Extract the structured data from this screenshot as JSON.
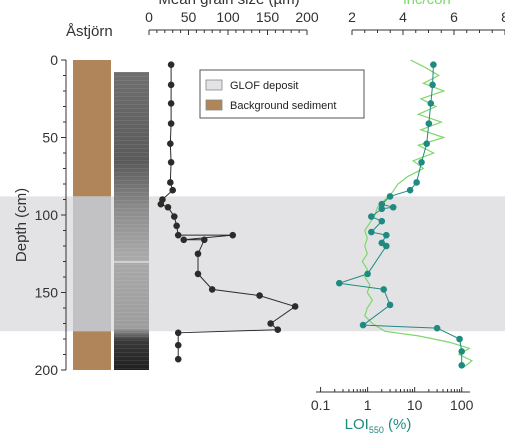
{
  "colors": {
    "glof": "#e3e3e5",
    "background_sediment": "#b08559",
    "grain_markers": "#2b2b2b",
    "loi_markers": "#1f8a80",
    "inc_coh_line": "#7dd86a",
    "axis": "#333333"
  },
  "chart_data": {
    "type": "scatter",
    "core_label": "Åstjörn",
    "depth_axis": {
      "label": "Depth (cm)",
      "ticks": [
        "0",
        "50",
        "100",
        "150",
        "200"
      ],
      "tick_values": [
        0,
        50,
        100,
        150,
        200
      ],
      "ylim": [
        0,
        200
      ],
      "inverted": true
    },
    "glof_interval_cm": [
      88,
      175
    ],
    "lithology": [
      {
        "name": "Background sediment",
        "from": 0,
        "to": 88
      },
      {
        "name": "GLOF deposit",
        "from": 88,
        "to": 175
      },
      {
        "name": "Background sediment",
        "from": 175,
        "to": 200
      }
    ],
    "legend": [
      {
        "name": "GLOF deposit",
        "color": "#e3e3e5"
      },
      {
        "name": "Background sediment",
        "color": "#b08559"
      }
    ],
    "grain_size": {
      "xlabel": "Mean grain size (µm)",
      "ticks": [
        "0",
        "50",
        "100",
        "150",
        "200"
      ],
      "tick_values": [
        0,
        50,
        100,
        150,
        200
      ],
      "xlim": [
        0,
        200
      ],
      "points": [
        {
          "x": 28,
          "y": 3
        },
        {
          "x": 28,
          "y": 16
        },
        {
          "x": 28,
          "y": 28
        },
        {
          "x": 28,
          "y": 41
        },
        {
          "x": 27,
          "y": 54
        },
        {
          "x": 28,
          "y": 66
        },
        {
          "x": 27,
          "y": 79
        },
        {
          "x": 30,
          "y": 84
        },
        {
          "x": 17,
          "y": 90
        },
        {
          "x": 15,
          "y": 93
        },
        {
          "x": 24,
          "y": 95
        },
        {
          "x": 32,
          "y": 101
        },
        {
          "x": 35,
          "y": 107
        },
        {
          "x": 37,
          "y": 113
        },
        {
          "x": 106,
          "y": 113
        },
        {
          "x": 44,
          "y": 116
        },
        {
          "x": 70,
          "y": 116
        },
        {
          "x": 62,
          "y": 125
        },
        {
          "x": 62,
          "y": 138
        },
        {
          "x": 80,
          "y": 148
        },
        {
          "x": 140,
          "y": 152
        },
        {
          "x": 185,
          "y": 159
        },
        {
          "x": 154,
          "y": 170
        },
        {
          "x": 163,
          "y": 174
        },
        {
          "x": 37,
          "y": 176
        },
        {
          "x": 37,
          "y": 184
        },
        {
          "x": 37,
          "y": 193
        }
      ]
    },
    "loi550": {
      "xlabel": "LOI550 (%)",
      "xlabel_main": "LOI",
      "xlabel_sub": "550",
      "xlabel_unit": " (%)",
      "scale": "log",
      "ticks": [
        "0.1",
        "1",
        "10",
        "100"
      ],
      "tick_values": [
        0.1,
        1,
        10,
        100
      ],
      "xlim": [
        0.08,
        150
      ],
      "points": [
        {
          "x": 25,
          "y": 3
        },
        {
          "x": 24,
          "y": 16
        },
        {
          "x": 22,
          "y": 28
        },
        {
          "x": 20,
          "y": 41
        },
        {
          "x": 18,
          "y": 54
        },
        {
          "x": 14,
          "y": 66
        },
        {
          "x": 11,
          "y": 79
        },
        {
          "x": 8,
          "y": 84
        },
        {
          "x": 3,
          "y": 88
        },
        {
          "x": 2,
          "y": 93
        },
        {
          "x": 3.5,
          "y": 95
        },
        {
          "x": 2,
          "y": 96
        },
        {
          "x": 1.2,
          "y": 101
        },
        {
          "x": 2,
          "y": 104
        },
        {
          "x": 1.2,
          "y": 111
        },
        {
          "x": 2.5,
          "y": 113
        },
        {
          "x": 2,
          "y": 118
        },
        {
          "x": 2.5,
          "y": 120
        },
        {
          "x": 1,
          "y": 138
        },
        {
          "x": 0.25,
          "y": 144
        },
        {
          "x": 2.2,
          "y": 148
        },
        {
          "x": 3,
          "y": 158
        },
        {
          "x": 0.8,
          "y": 171
        },
        {
          "x": 30,
          "y": 173
        },
        {
          "x": 90,
          "y": 180
        },
        {
          "x": 100,
          "y": 188
        },
        {
          "x": 100,
          "y": 197
        }
      ]
    },
    "inc_coh": {
      "xlabel": "inc/coh",
      "ticks": [
        "2",
        "4",
        "6",
        "8"
      ],
      "tick_values": [
        2,
        4,
        6,
        8
      ],
      "xlim": [
        2,
        8
      ],
      "profile": [
        {
          "x": 4.3,
          "y": 0
        },
        {
          "x": 4.9,
          "y": 5
        },
        {
          "x": 5.4,
          "y": 10
        },
        {
          "x": 4.8,
          "y": 15
        },
        {
          "x": 5.6,
          "y": 20
        },
        {
          "x": 4.7,
          "y": 25
        },
        {
          "x": 5.3,
          "y": 30
        },
        {
          "x": 4.6,
          "y": 35
        },
        {
          "x": 5.5,
          "y": 40
        },
        {
          "x": 4.7,
          "y": 45
        },
        {
          "x": 5.6,
          "y": 50
        },
        {
          "x": 4.6,
          "y": 55
        },
        {
          "x": 5.2,
          "y": 60
        },
        {
          "x": 4.4,
          "y": 65
        },
        {
          "x": 4.8,
          "y": 70
        },
        {
          "x": 4.2,
          "y": 75
        },
        {
          "x": 3.8,
          "y": 80
        },
        {
          "x": 3.6,
          "y": 85
        },
        {
          "x": 3.3,
          "y": 90
        },
        {
          "x": 3.0,
          "y": 95
        },
        {
          "x": 2.9,
          "y": 100
        },
        {
          "x": 2.7,
          "y": 105
        },
        {
          "x": 2.5,
          "y": 110
        },
        {
          "x": 2.6,
          "y": 115
        },
        {
          "x": 2.5,
          "y": 120
        },
        {
          "x": 2.6,
          "y": 125
        },
        {
          "x": 2.4,
          "y": 130
        },
        {
          "x": 2.6,
          "y": 135
        },
        {
          "x": 2.5,
          "y": 140
        },
        {
          "x": 2.7,
          "y": 145
        },
        {
          "x": 2.6,
          "y": 150
        },
        {
          "x": 2.8,
          "y": 155
        },
        {
          "x": 2.6,
          "y": 160
        },
        {
          "x": 2.5,
          "y": 165
        },
        {
          "x": 2.8,
          "y": 170
        },
        {
          "x": 3.3,
          "y": 175
        },
        {
          "x": 4.6,
          "y": 178
        },
        {
          "x": 5.8,
          "y": 182
        },
        {
          "x": 6.6,
          "y": 186
        },
        {
          "x": 6.2,
          "y": 190
        },
        {
          "x": 6.7,
          "y": 194
        },
        {
          "x": 6.4,
          "y": 198
        }
      ]
    }
  }
}
